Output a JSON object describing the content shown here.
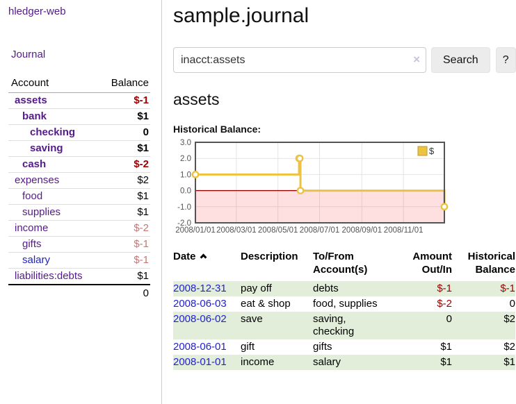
{
  "app": {
    "brand": "hledger-web",
    "nav_journal": "Journal"
  },
  "header": {
    "title": "sample.journal"
  },
  "search": {
    "value": "inacct:assets",
    "clear_icon": "×",
    "search_label": "Search",
    "help_label": "?"
  },
  "account_page": {
    "title": "assets",
    "chart_label": "Historical Balance:"
  },
  "sidebar": {
    "accounts": {
      "headers": {
        "account": "Account",
        "balance": "Balance"
      },
      "rows": [
        {
          "name": "assets",
          "indent": 1,
          "bold": true,
          "balance": "$-1",
          "tone": "neg",
          "link": "purple"
        },
        {
          "name": "bank",
          "indent": 2,
          "bold": true,
          "balance": "$1",
          "tone": "plain",
          "link": "purple"
        },
        {
          "name": "checking",
          "indent": 3,
          "bold": true,
          "balance": "0",
          "tone": "plain",
          "link": "purple"
        },
        {
          "name": "saving",
          "indent": 3,
          "bold": true,
          "balance": "$1",
          "tone": "plain",
          "link": "purple"
        },
        {
          "name": "cash",
          "indent": 2,
          "bold": true,
          "balance": "$-2",
          "tone": "neg",
          "link": "purple"
        },
        {
          "name": "expenses",
          "indent": 1,
          "bold": false,
          "balance": "$2",
          "tone": "plain",
          "link": "purple"
        },
        {
          "name": "food",
          "indent": 2,
          "bold": false,
          "balance": "$1",
          "tone": "plain",
          "link": "purple"
        },
        {
          "name": "supplies",
          "indent": 2,
          "bold": false,
          "balance": "$1",
          "tone": "plain",
          "link": "purple"
        },
        {
          "name": "income",
          "indent": 1,
          "bold": false,
          "balance": "$-2",
          "tone": "negsoft",
          "link": "purple"
        },
        {
          "name": "gifts",
          "indent": 2,
          "bold": false,
          "balance": "$-1",
          "tone": "negsoft",
          "link": "purple"
        },
        {
          "name": "salary",
          "indent": 2,
          "bold": false,
          "balance": "$-1",
          "tone": "negsoft",
          "link": "blue"
        },
        {
          "name": "liabilities:debts",
          "indent": 1,
          "bold": false,
          "balance": "$1",
          "tone": "plain",
          "link": "purple"
        }
      ],
      "total": "0"
    }
  },
  "chart_data": {
    "type": "line",
    "step": true,
    "title": "Historical Balance:",
    "x_range": [
      "2008-01-01",
      "2008-12-31"
    ],
    "x_ticks": [
      "2008/01/01",
      "2008/03/01",
      "2008/05/01",
      "2008/07/01",
      "2008/09/01",
      "2008/11/01"
    ],
    "y_ticks": [
      "3.0",
      "2.0",
      "1.0",
      "0.0",
      "-1.0",
      "-2.0"
    ],
    "ylim": [
      -2,
      3
    ],
    "grid": true,
    "legend": {
      "label": "$",
      "position": "top-right"
    },
    "series": [
      {
        "name": "$",
        "color": "#edc240",
        "points": [
          [
            "2008-01-01",
            1
          ],
          [
            "2008-06-01",
            2
          ],
          [
            "2008-06-02",
            2
          ],
          [
            "2008-06-03",
            0
          ],
          [
            "2008-12-31",
            -1
          ]
        ]
      }
    ],
    "negative_region": true
  },
  "register": {
    "columns": [
      {
        "line1": "Date",
        "line2": "",
        "sort": "ascending"
      },
      {
        "line1": "Description",
        "line2": ""
      },
      {
        "line1": "To/From",
        "line2": "Account(s)"
      },
      {
        "line1": "Amount",
        "line2": "Out/In",
        "align": "right"
      },
      {
        "line1": "Historical",
        "line2": "Balance",
        "align": "right"
      }
    ],
    "rows": [
      {
        "date": "2008-12-31",
        "description": "pay off",
        "accounts": "debts",
        "amount": "$-1",
        "amount_tone": "neg",
        "balance": "$-1",
        "balance_tone": "neg"
      },
      {
        "date": "2008-06-03",
        "description": "eat & shop",
        "accounts": "food, supplies",
        "amount": "$-2",
        "amount_tone": "neg",
        "balance": "0",
        "balance_tone": "plain"
      },
      {
        "date": "2008-06-02",
        "description": "save",
        "accounts": "saving, checking",
        "amount": "0",
        "amount_tone": "plain",
        "balance": "$2",
        "balance_tone": "plain"
      },
      {
        "date": "2008-06-01",
        "description": "gift",
        "accounts": "gifts",
        "amount": "$1",
        "amount_tone": "plain",
        "balance": "$2",
        "balance_tone": "plain"
      },
      {
        "date": "2008-01-01",
        "description": "income",
        "accounts": "salary",
        "amount": "$1",
        "amount_tone": "plain",
        "balance": "$1",
        "balance_tone": "plain"
      }
    ]
  },
  "colors": {
    "link_purple": "#551a8b",
    "link_blue": "#2222cc",
    "negative_strong": "#a00000",
    "negative_soft": "#c47777",
    "row_stripe_green": "#e2eeda",
    "chart_series_gold": "#edc240",
    "chart_negative_fill": "rgba(255,0,0,0.12)",
    "chart_zero_line": "#8b0000",
    "chart_border": "#545454",
    "chart_tick_text": "#545454",
    "chart_gridline": "#e4e4e4"
  }
}
